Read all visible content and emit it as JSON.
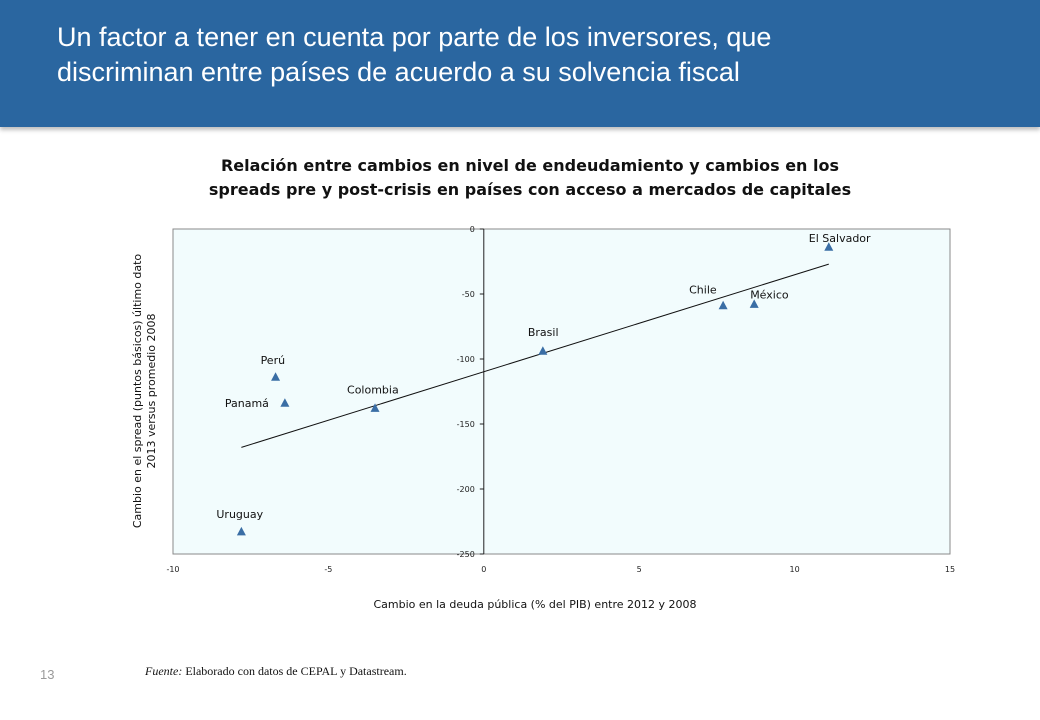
{
  "header": {
    "title_line1": "Un factor a tener en cuenta por parte de los inversores, que",
    "title_line2": "discriminan entre países de acuerdo a su solvencia fiscal",
    "background": "#2a66a0"
  },
  "footer": {
    "page_number": "13",
    "source_label": "Fuente:",
    "source_text": " Elaborado con datos de CEPAL y Datastream."
  },
  "chart_data": {
    "type": "scatter",
    "title_line1": "Relación entre cambios en nivel de endeudamiento y cambios en los",
    "title_line2": "spreads pre y post-crisis en países con acceso a mercados de capitales",
    "xlabel": "Cambio en la deuda pública (% del PIB) entre 2012 y 2008",
    "ylabel_line1": "Cambio en el spread (puntos básicos) último dato",
    "ylabel_line2": "2013 versus promedio 2008",
    "xlim": [
      -10,
      15
    ],
    "ylim": [
      -250,
      0
    ],
    "xticks": [
      -10,
      -5,
      0,
      5,
      10,
      15
    ],
    "yticks": [
      0,
      -50,
      -100,
      -150,
      -200,
      -250
    ],
    "grid": false,
    "plot_background": "#f2fcfd",
    "marker_color": "#3a6ea5",
    "points": [
      {
        "label": "El Salvador",
        "x": 11.1,
        "y": -14
      },
      {
        "label": "Chile",
        "x": 7.7,
        "y": -59
      },
      {
        "label": "México",
        "x": 8.7,
        "y": -58
      },
      {
        "label": "Brasil",
        "x": 1.9,
        "y": -94
      },
      {
        "label": "Perú",
        "x": -6.7,
        "y": -114
      },
      {
        "label": "Panamá",
        "x": -6.4,
        "y": -134
      },
      {
        "label": "Colombia",
        "x": -3.5,
        "y": -138
      },
      {
        "label": "Uruguay",
        "x": -7.8,
        "y": -233
      }
    ],
    "trendline": {
      "x": [
        -7.8,
        11.1
      ],
      "y": [
        -168,
        -27
      ]
    }
  }
}
